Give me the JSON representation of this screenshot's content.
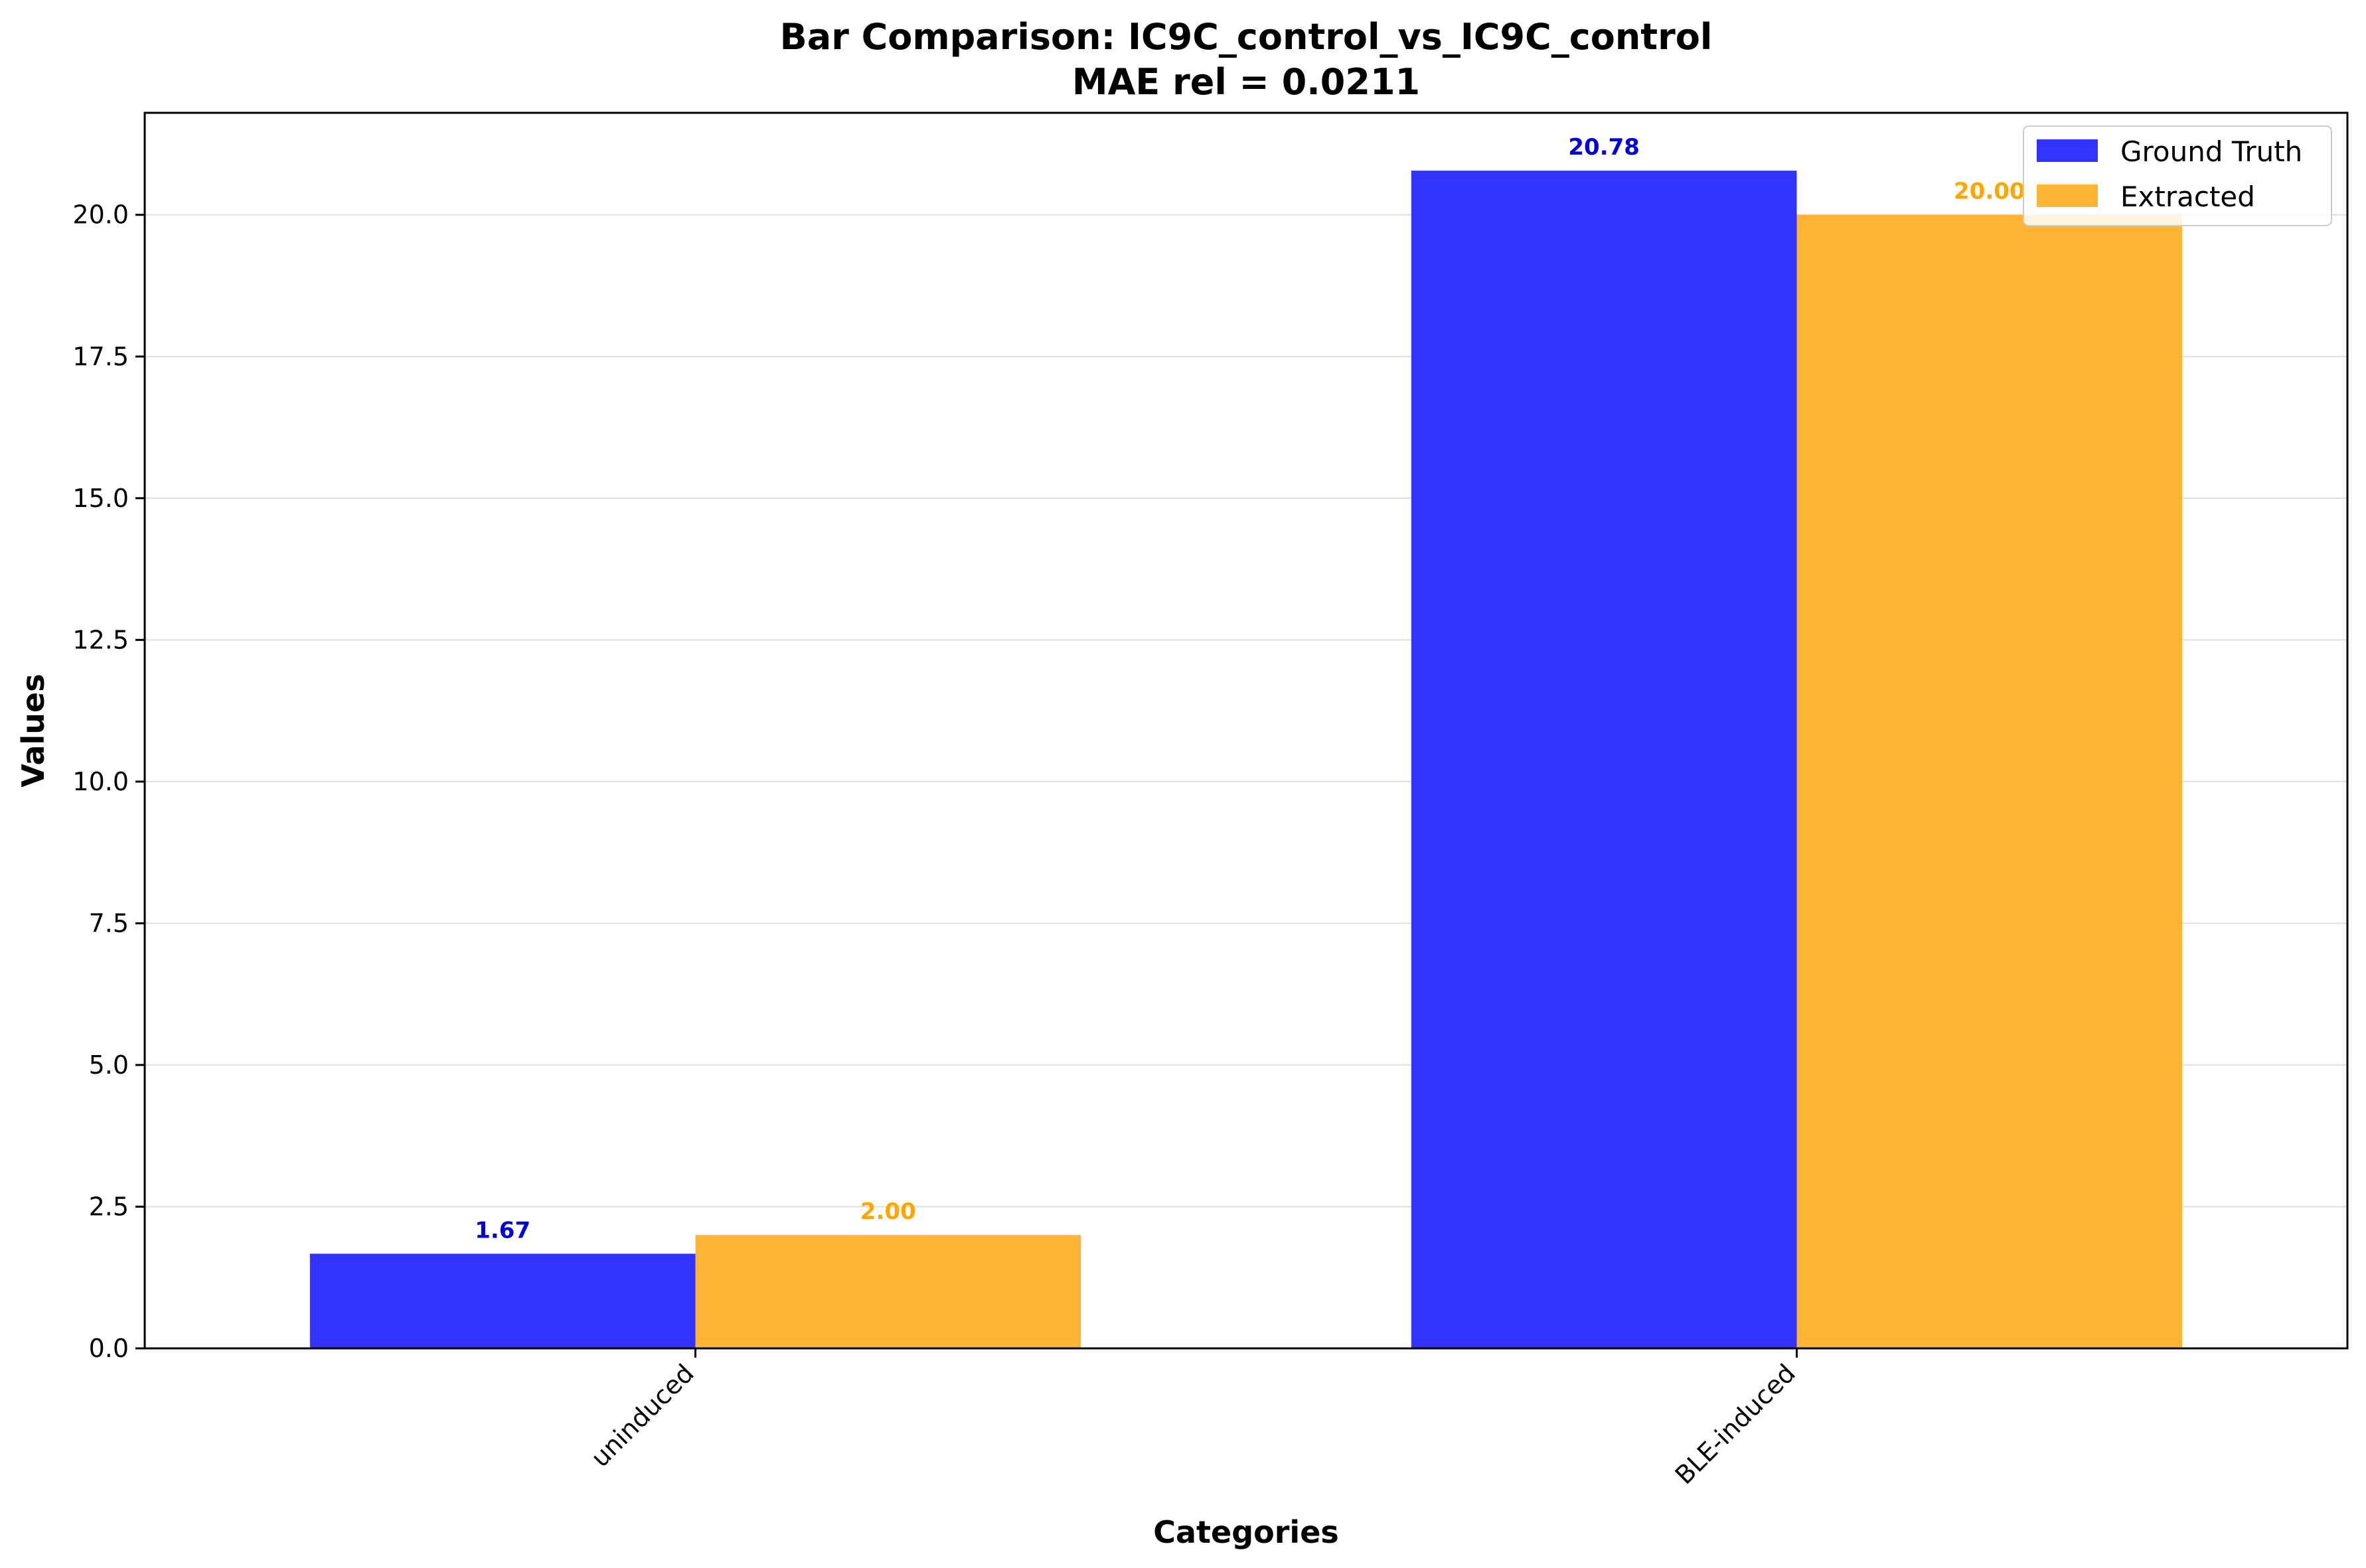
{
  "chart_data": {
    "type": "bar",
    "title": "Bar Comparison: IC9C_control_vs_IC9C_control",
    "subtitle": "MAE rel = 0.0211",
    "xlabel": "Categories",
    "ylabel": "Values",
    "categories": [
      "uninduced",
      "BLE-induced"
    ],
    "series": [
      {
        "name": "Ground Truth",
        "values": [
          1.67,
          20.78
        ],
        "labels": [
          "1.67",
          "20.78"
        ],
        "color": "#3333ff",
        "label_color": "#0000dd"
      },
      {
        "name": "Extracted",
        "values": [
          2.0,
          20.0
        ],
        "labels": [
          "2.00",
          "20.00"
        ],
        "color": "#ffb533",
        "label_color": "#ffa500"
      }
    ],
    "ylim": [
      0,
      21.8
    ],
    "yticks": [
      0,
      2.5,
      5,
      7.5,
      10,
      12.5,
      15,
      17.5,
      20
    ],
    "ytick_labels": [
      "0.0",
      "2.5",
      "5.0",
      "7.5",
      "10.0",
      "12.5",
      "15.0",
      "17.5",
      "20.0"
    ],
    "grid": "horizontal",
    "legend_position": "top-right"
  }
}
